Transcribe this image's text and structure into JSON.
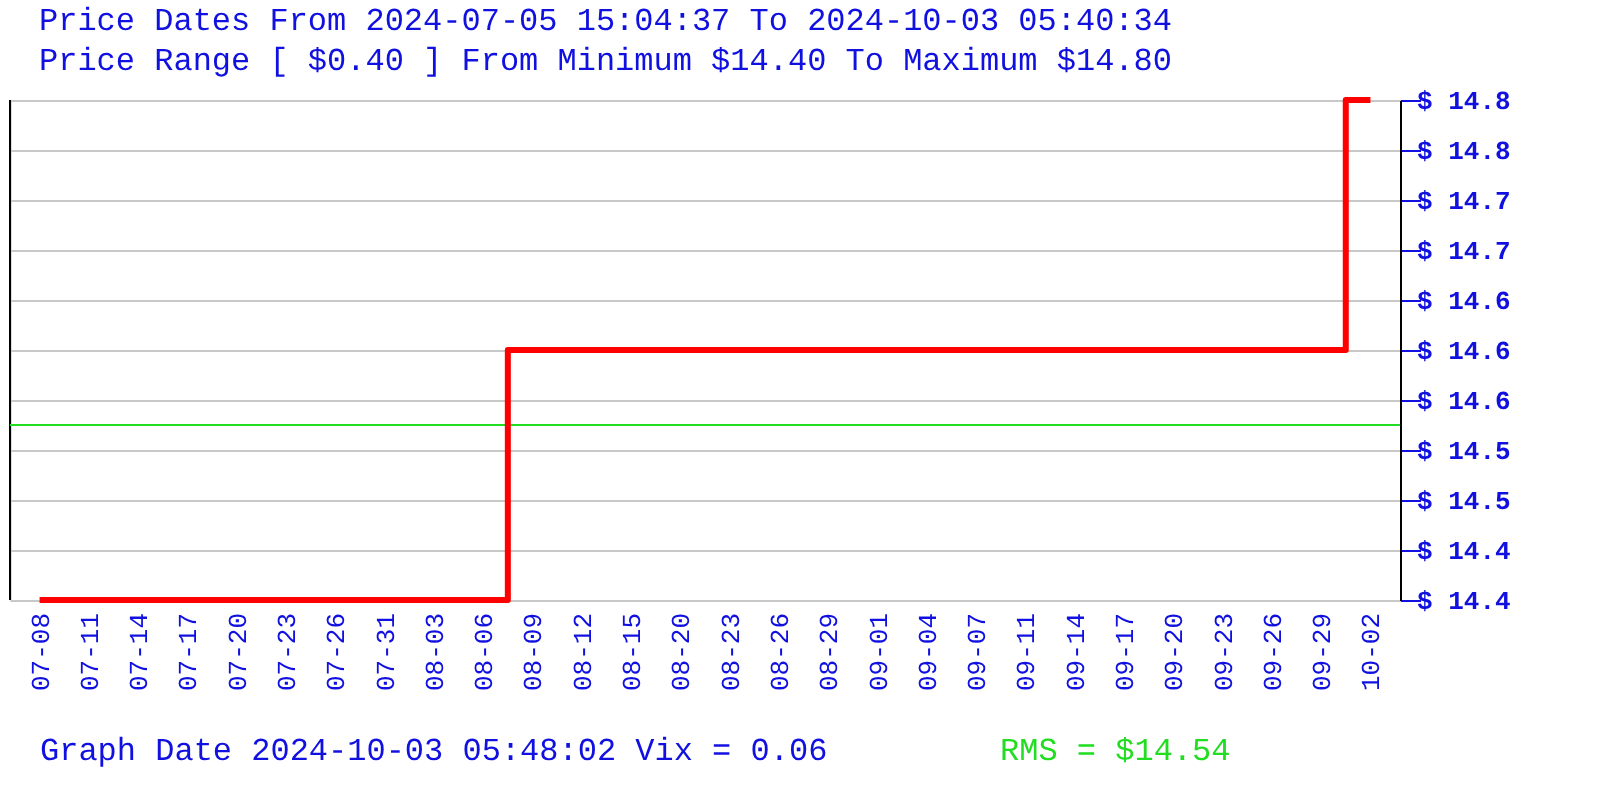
{
  "chart_data": {
    "type": "step",
    "title": [
      "Price Dates From 2024-07-05 15:04:37 To 2024-10-03 05:40:34",
      "Price Range [ $0.40 ] From Minimum $14.40 To Maximum $14.80"
    ],
    "categories": [
      "07-08",
      "07-11",
      "07-14",
      "07-17",
      "07-20",
      "07-23",
      "07-26",
      "07-31",
      "08-03",
      "08-06",
      "08-09",
      "08-12",
      "08-15",
      "08-20",
      "08-23",
      "08-26",
      "08-29",
      "09-01",
      "09-04",
      "09-07",
      "09-11",
      "09-14",
      "09-17",
      "09-20",
      "09-23",
      "09-26",
      "09-29",
      "10-02"
    ],
    "series": [
      {
        "color": "#ff0000",
        "values": [
          14.4,
          14.4,
          14.4,
          14.4,
          14.4,
          14.4,
          14.4,
          14.4,
          14.4,
          14.4,
          14.6,
          14.6,
          14.6,
          14.6,
          14.6,
          14.6,
          14.6,
          14.6,
          14.6,
          14.6,
          14.6,
          14.6,
          14.6,
          14.6,
          14.6,
          14.6,
          14.6,
          14.8
        ]
      }
    ],
    "ylim": [
      14.4,
      14.8
    ],
    "yticks": [
      {
        "value": 14.4,
        "label": "$ 14.4"
      },
      {
        "value": 14.44,
        "label": "$ 14.4"
      },
      {
        "value": 14.48,
        "label": "$ 14.5"
      },
      {
        "value": 14.52,
        "label": "$ 14.5"
      },
      {
        "value": 14.56,
        "label": "$ 14.6"
      },
      {
        "value": 14.6,
        "label": "$ 14.6"
      },
      {
        "value": 14.64,
        "label": "$ 14.6"
      },
      {
        "value": 14.68,
        "label": "$ 14.7"
      },
      {
        "value": 14.72,
        "label": "$ 14.7"
      },
      {
        "value": 14.76,
        "label": "$ 14.8"
      },
      {
        "value": 14.8,
        "label": "$ 14.8"
      }
    ],
    "ref_lines": [
      {
        "axis": "y",
        "value": 14.54,
        "label": "RMS = $14.54",
        "color": "#22dd22"
      }
    ],
    "annotations": [
      "Graph Date 2024-10-03 05:48:02 Vix = 0.06"
    ],
    "grid": "y",
    "marker": "none",
    "line_style": "solid"
  }
}
